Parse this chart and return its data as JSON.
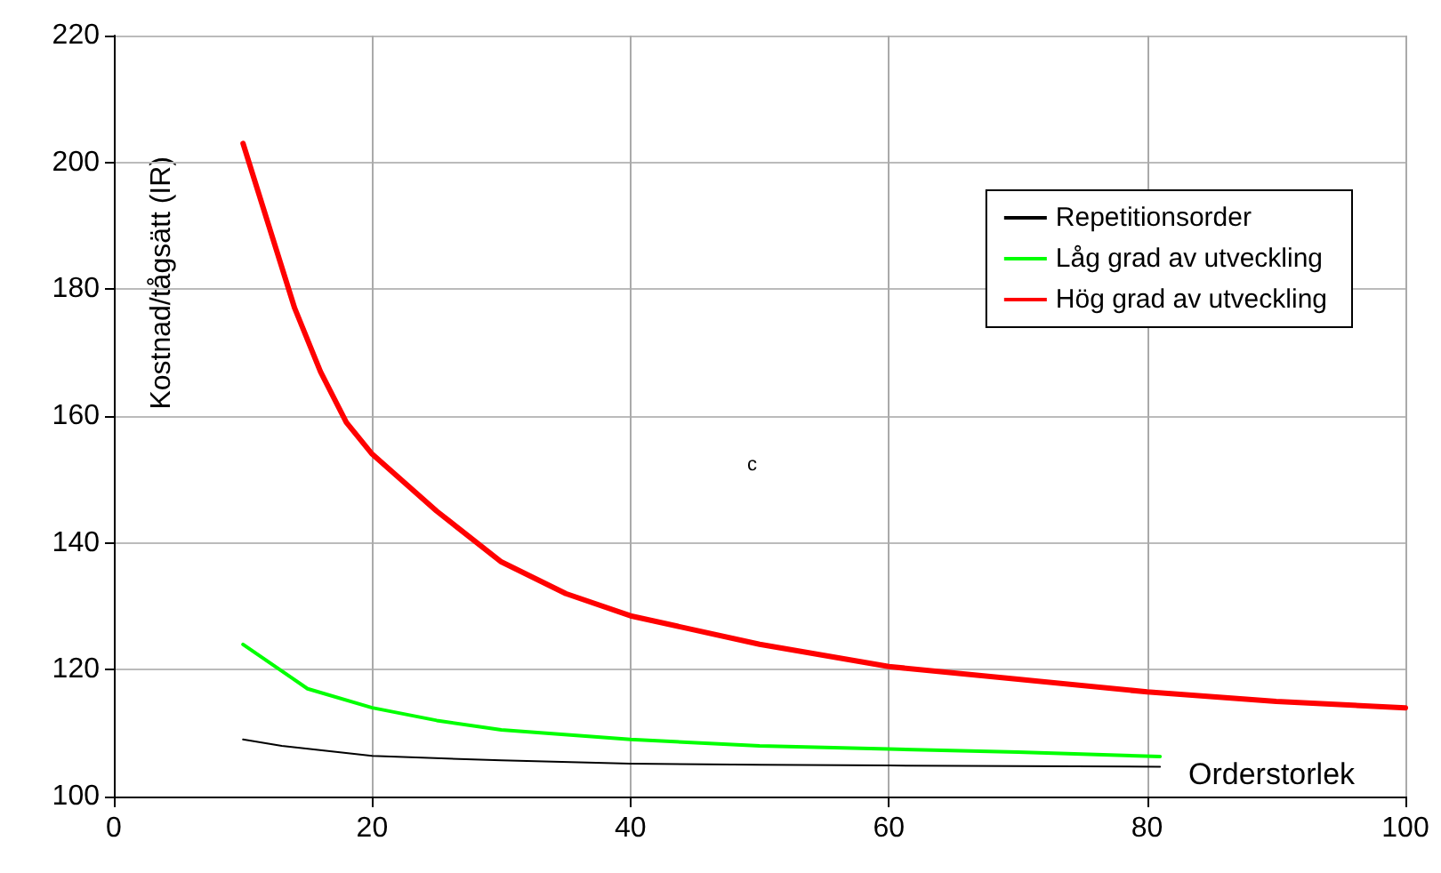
{
  "chart_data": {
    "type": "line",
    "xlabel": "Orderstorlek",
    "ylabel": "Kostnad/tågsätt (IR)",
    "annotations": [
      "c"
    ],
    "series": [
      {
        "name": "Repetitionsorder",
        "color": "#000000",
        "x": [
          10,
          13,
          20,
          30,
          40,
          50,
          60,
          70,
          81
        ],
        "values": [
          109,
          108,
          106.4,
          105.7,
          105.2,
          105,
          104.9,
          104.8,
          104.7
        ]
      },
      {
        "name": "Låg grad av utveckling",
        "color": "#00ff00",
        "x": [
          10,
          15,
          20,
          25,
          30,
          40,
          50,
          60,
          70,
          81
        ],
        "values": [
          124,
          117,
          114,
          112,
          110.5,
          109,
          108,
          107.5,
          107,
          106.3
        ]
      },
      {
        "name": "Hög grad av utveckling",
        "color": "#ff0000",
        "x": [
          10,
          12,
          14,
          16,
          18,
          20,
          25,
          30,
          35,
          40,
          50,
          60,
          70,
          80,
          90,
          100
        ],
        "values": [
          203,
          190,
          177,
          167,
          159,
          154,
          145,
          137,
          132,
          128.5,
          124,
          120.5,
          118.5,
          116.5,
          115,
          114
        ]
      }
    ],
    "xlim": [
      0,
      100
    ],
    "xticks": [
      0,
      20,
      40,
      60,
      80,
      100
    ],
    "ylim": [
      100,
      220
    ],
    "yticks": [
      100,
      120,
      140,
      160,
      180,
      200,
      220
    ],
    "grid": true,
    "legend": "top right",
    "marker": "none",
    "line_style": "solid"
  }
}
